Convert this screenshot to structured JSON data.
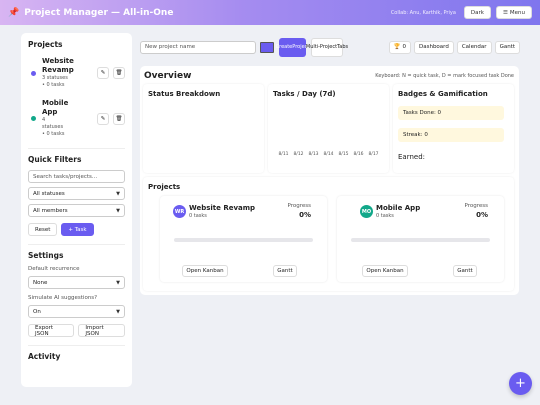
{
  "header": {
    "logo_icon": "pin-icon",
    "title": "Project Manager — All-in-One",
    "collaborators": "Collab: Anu, Karthik, Priya",
    "dark_label": "Dark",
    "menu_label": "Menu"
  },
  "sidebar": {
    "projects_title": "Projects",
    "projects": [
      {
        "name_line1": "Website",
        "name_line2": "Revamp",
        "meta1": "3 statuses",
        "meta2": "• 0 tasks",
        "color": "#6a5cf0"
      },
      {
        "name_line1": "Mobile",
        "name_line2": "App",
        "meta1": "4",
        "meta2": "statuses",
        "meta3": "• 0 tasks",
        "color": "#12a88a"
      }
    ],
    "quick_filters_title": "Quick Filters",
    "search_placeholder": "Search tasks/projects...",
    "status_filter": "All statuses",
    "member_filter": "All members",
    "reset_label": "Reset",
    "add_task_label": "+ Task",
    "settings_title": "Settings",
    "recurrence_label": "Default recurrence",
    "recurrence_value": "None",
    "ai_label": "Simulate AI suggestions?",
    "ai_value": "On",
    "export_label": "Export JSON",
    "import_label": "Import JSON",
    "activity_title": "Activity"
  },
  "toolbar": {
    "new_project_placeholder": "New project name",
    "project_color": "#6a5cf0",
    "create_line1": "Create",
    "create_line2": "Project",
    "multi_line1": "Multi-",
    "multi_line2": "Project",
    "multi_line3": "Tabs",
    "trophy_count": "🏆 0",
    "dashboard_label": "Dashboard",
    "calendar_label": "Calendar",
    "gantt_label": "Gantt"
  },
  "overview": {
    "title": "Overview",
    "keyboard_hint": "Keyboard: N = quick task, D = mark focused task Done",
    "status_breakdown_title": "Status Breakdown",
    "tasks_day_title": "Tasks / Day (7d)",
    "badges_title": "Badges & Gamification",
    "tasks_done": "Tasks Done: 0",
    "streak": "Streak: 0",
    "earned": "Earned:"
  },
  "chart_data": {
    "type": "bar",
    "title": "Tasks / Day (7d)",
    "categories": [
      "8/11",
      "8/12",
      "8/13",
      "8/14",
      "8/15",
      "8/16",
      "8/17"
    ],
    "values": [
      0,
      0,
      0,
      0,
      0,
      0,
      0
    ]
  },
  "projects_section": {
    "title": "Projects",
    "cards": [
      {
        "initials": "WR",
        "name": "Website Revamp",
        "tasks": "0 tasks",
        "progress_label": "Progress",
        "progress_value": "0%",
        "progress": 0,
        "color": "#6a5cf0",
        "open_label": "Open Kanban",
        "gantt_label": "Gantt"
      },
      {
        "initials": "MO",
        "name": "Mobile App",
        "tasks": "0 tasks",
        "progress_label": "Progress",
        "progress_value": "0%",
        "progress": 0,
        "color": "#12a88a",
        "open_label": "Open Kanban",
        "gantt_label": "Gantt"
      }
    ]
  },
  "fab_label": "+"
}
